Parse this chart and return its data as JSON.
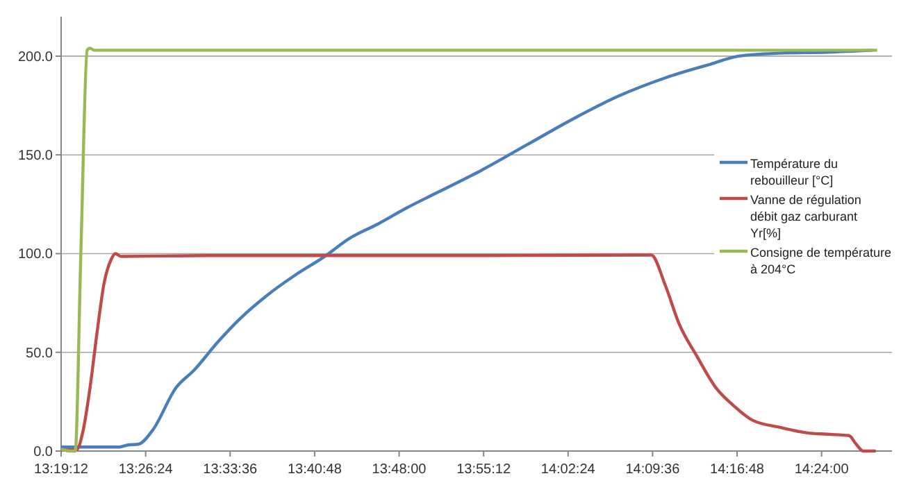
{
  "chart_data": {
    "type": "line",
    "xlim": [
      13.32,
      14.5
    ],
    "ylim": [
      0,
      220
    ],
    "xticks": [
      {
        "value": 13.32,
        "label": "13:19:12"
      },
      {
        "value": 13.44,
        "label": "13:26:24"
      },
      {
        "value": 13.56,
        "label": "13:33:36"
      },
      {
        "value": 13.68,
        "label": "13:40:48"
      },
      {
        "value": 13.8,
        "label": "13:48:00"
      },
      {
        "value": 13.92,
        "label": "13:55:12"
      },
      {
        "value": 14.04,
        "label": "14:02:24"
      },
      {
        "value": 14.16,
        "label": "14:09:36"
      },
      {
        "value": 14.28,
        "label": "14:16:48"
      },
      {
        "value": 14.4,
        "label": "14:24:00"
      }
    ],
    "yticks": [
      {
        "value": 0,
        "label": "0.0"
      },
      {
        "value": 50,
        "label": "50.0"
      },
      {
        "value": 100,
        "label": "100.0"
      },
      {
        "value": 150,
        "label": "150.0"
      },
      {
        "value": 200,
        "label": "200.0"
      }
    ],
    "grid": "y",
    "legend": "right",
    "marker": "none",
    "line_style": "solid",
    "series": [
      {
        "name": "Température du rebouilleur [°C]",
        "color": "#4a7ebb",
        "x": [
          13.32,
          13.342,
          13.371,
          13.401,
          13.414,
          13.43,
          13.45,
          13.483,
          13.509,
          13.542,
          13.574,
          13.613,
          13.652,
          13.692,
          13.731,
          13.77,
          13.81,
          13.849,
          13.883,
          13.916,
          13.981,
          14.046,
          14.113,
          14.178,
          14.243,
          14.282,
          14.341,
          14.408,
          14.473
        ],
        "values": [
          2,
          2,
          2,
          2,
          3,
          3.5,
          10.6,
          32,
          41,
          55,
          67,
          79,
          89,
          98,
          108,
          115,
          123,
          130,
          136,
          142,
          155,
          168,
          180,
          189,
          196,
          200,
          201.5,
          202,
          203
        ]
      },
      {
        "name": "Vanne de régulation débit gaz carburant Yr[%]",
        "color": "#be4b48",
        "x": [
          13.32,
          13.342,
          13.351,
          13.361,
          13.371,
          13.381,
          13.391,
          13.397,
          13.405,
          13.528,
          13.725,
          13.922,
          14.158,
          14.178,
          14.197,
          14.223,
          14.25,
          14.276,
          14.302,
          14.341,
          14.38,
          14.408,
          14.439,
          14.449,
          14.459,
          14.477
        ],
        "values": [
          0.5,
          0.7,
          10,
          32,
          60,
          85,
          97,
          100,
          98.6,
          99,
          99,
          99,
          99.3,
          84,
          65,
          48,
          32,
          22.7,
          15.6,
          12,
          9.2,
          8.5,
          7.8,
          3.5,
          0,
          0
        ]
      },
      {
        "name": "Consigne de température à 204°C",
        "color": "#98b954",
        "x": [
          13.32,
          13.332,
          13.34,
          13.348,
          13.357,
          13.361,
          13.367,
          14.479
        ],
        "values": [
          1,
          0,
          0,
          100,
          203,
          204,
          203,
          203
        ]
      }
    ]
  }
}
